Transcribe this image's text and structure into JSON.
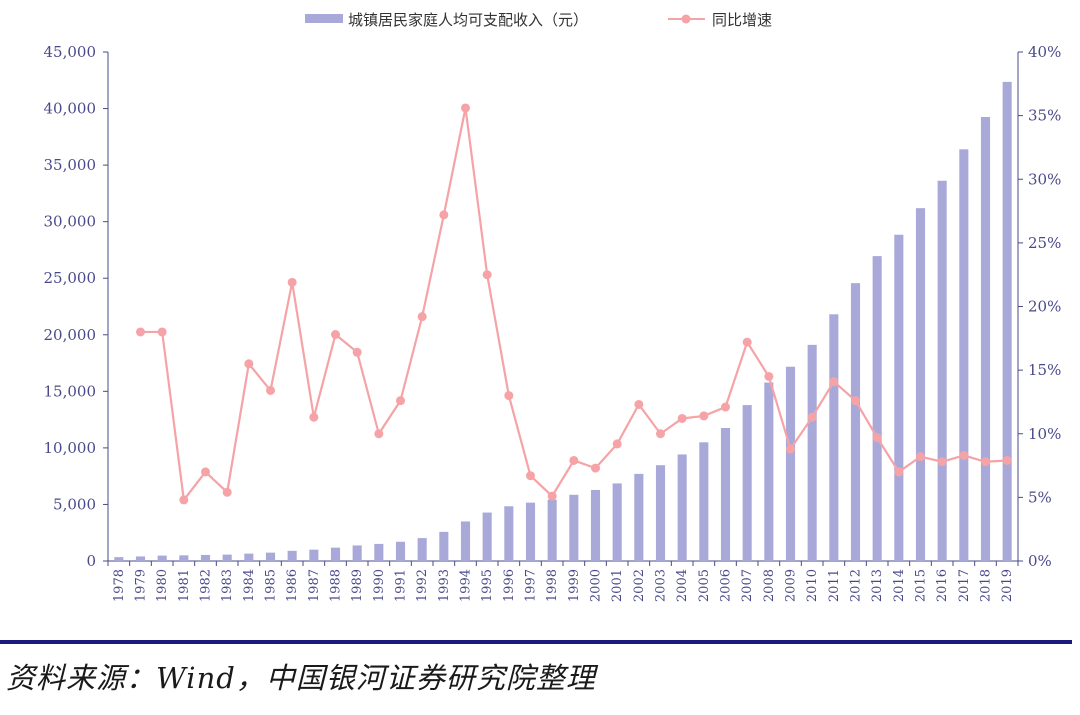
{
  "source": "资料来源：Wind，中国银河证券研究院整理",
  "chart_data": {
    "type": "bar+line",
    "categories": [
      "1978",
      "1979",
      "1980",
      "1981",
      "1982",
      "1983",
      "1984",
      "1985",
      "1986",
      "1987",
      "1988",
      "1989",
      "1990",
      "1991",
      "1992",
      "1993",
      "1994",
      "1995",
      "1996",
      "1997",
      "1998",
      "1999",
      "2000",
      "2001",
      "2002",
      "2003",
      "2004",
      "2005",
      "2006",
      "2007",
      "2008",
      "2009",
      "2010",
      "2011",
      "2012",
      "2013",
      "2014",
      "2015",
      "2016",
      "2017",
      "2018",
      "2019"
    ],
    "series": [
      {
        "name": "城镇居民家庭人均可支配收入（元）",
        "type": "bar",
        "axis": "left",
        "color": "#a9a9d9",
        "values": [
          343,
          405,
          478,
          500,
          535,
          564,
          652,
          739,
          900,
          1002,
          1180,
          1374,
          1510,
          1701,
          2027,
          2577,
          3496,
          4283,
          4839,
          5160,
          5425,
          5854,
          6280,
          6860,
          7703,
          8472,
          9422,
          10493,
          11759,
          13786,
          15781,
          17175,
          19109,
          21810,
          24565,
          26955,
          28844,
          31195,
          33616,
          36396,
          39251,
          42359
        ]
      },
      {
        "name": "同比增速",
        "type": "line",
        "axis": "right",
        "color": "#f5a3a6",
        "values": [
          null,
          18.0,
          18.0,
          4.8,
          7.0,
          5.4,
          15.5,
          13.4,
          21.9,
          11.3,
          17.8,
          16.4,
          10.0,
          12.6,
          19.2,
          27.2,
          35.6,
          22.5,
          13.0,
          6.7,
          5.1,
          7.9,
          7.3,
          9.2,
          12.3,
          10.0,
          11.2,
          11.4,
          12.1,
          17.2,
          14.5,
          8.8,
          11.3,
          14.1,
          12.6,
          9.7,
          7.0,
          8.2,
          7.8,
          8.3,
          7.8,
          7.9
        ]
      }
    ],
    "y_left": {
      "lim": [
        0,
        45000
      ],
      "ticks": [
        "0",
        "5,000",
        "10,000",
        "15,000",
        "20,000",
        "25,000",
        "30,000",
        "35,000",
        "40,000",
        "45,000"
      ]
    },
    "y_right": {
      "lim": [
        0,
        40
      ],
      "ticks": [
        "0%",
        "5%",
        "10%",
        "15%",
        "20%",
        "25%",
        "30%",
        "35%",
        "40%"
      ]
    },
    "legend_position": "top-center",
    "grid": false,
    "axis_color": "#4a4a8a"
  }
}
